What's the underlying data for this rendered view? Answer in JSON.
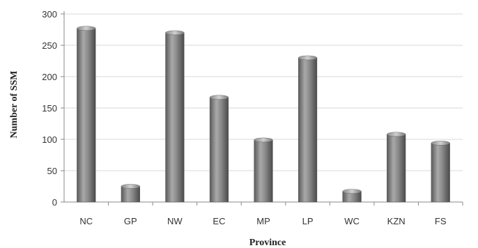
{
  "chart_data": {
    "type": "bar",
    "title": "",
    "xlabel": "Province",
    "ylabel": "Number  of SSM",
    "categories": [
      "NC",
      "GP",
      "NW",
      "EC",
      "MP",
      "LP",
      "WC",
      "KZN",
      "FS"
    ],
    "series": [
      {
        "values": [
          277,
          25,
          270,
          167,
          99,
          230,
          17,
          108,
          94
        ]
      }
    ],
    "ylim": [
      0,
      300
    ],
    "yticks": [
      "0",
      "50",
      "100",
      "150",
      "200",
      "250",
      "300"
    ],
    "grid": true,
    "legend": "none",
    "bar_color": "#7a7a7a",
    "grid_color": "#d9d9d9"
  }
}
